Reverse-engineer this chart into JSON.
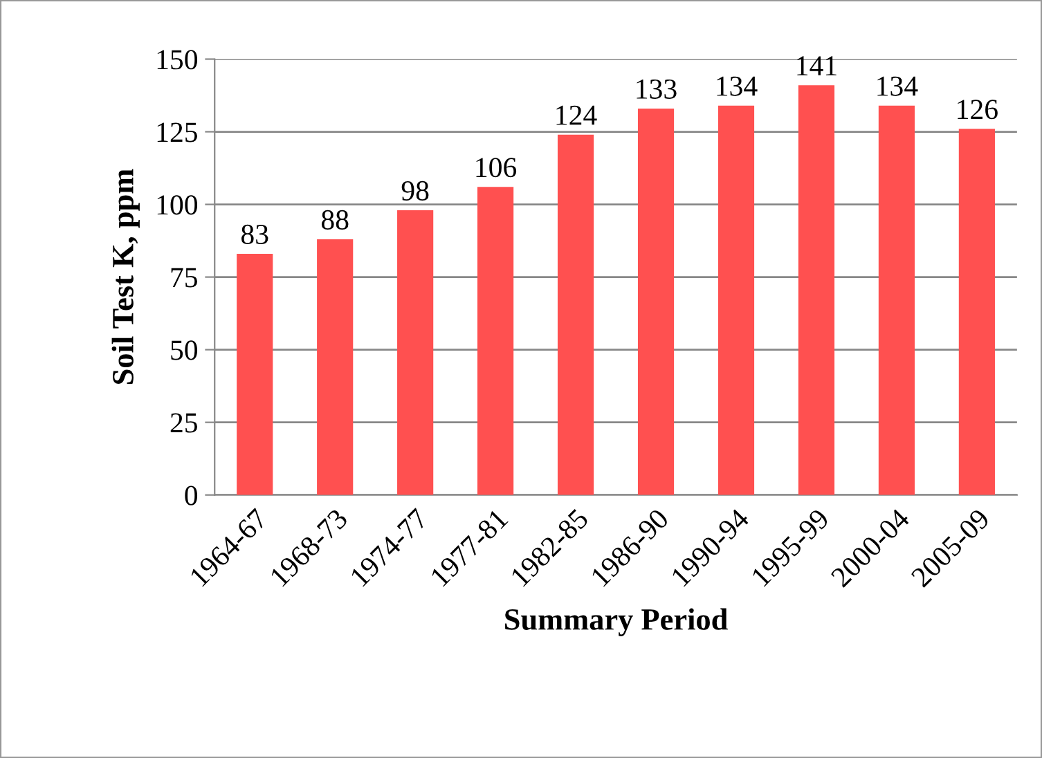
{
  "chart_data": {
    "type": "bar",
    "xlabel": "Summary Period",
    "ylabel": "Soil Test K, ppm",
    "categories": [
      "1964-67",
      "1968-73",
      "1974-77",
      "1977-81",
      "1982-85",
      "1986-90",
      "1990-94",
      "1995-99",
      "2000-04",
      "2005-09"
    ],
    "values": [
      83,
      88,
      98,
      106,
      124,
      133,
      134,
      141,
      134,
      126
    ],
    "color": "#ff5050",
    "ylim": [
      0,
      150
    ],
    "yticks": [
      0,
      25,
      50,
      75,
      100,
      125,
      150
    ],
    "grid": "y",
    "data_labels": true,
    "legend": false
  }
}
